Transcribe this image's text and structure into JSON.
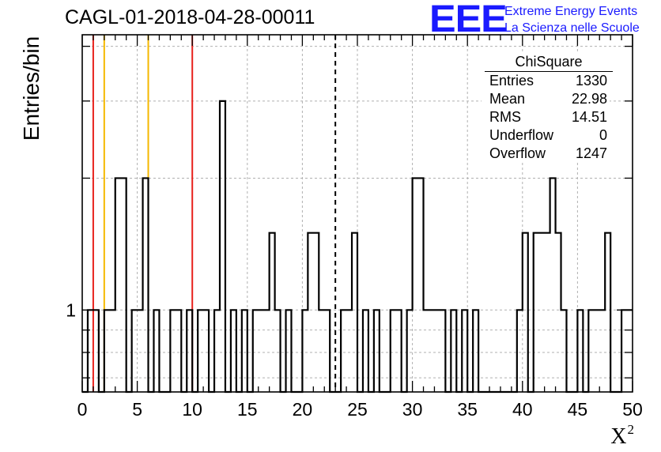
{
  "chart_data": {
    "type": "bar",
    "subtype": "step-histogram",
    "title": "CAGL-01-2018-04-28-00011",
    "xlabel": "X",
    "xlabel_superscript": "2",
    "ylabel": "Entries/bin",
    "xlim": [
      0,
      50
    ],
    "ylim": [
      0.65,
      4.25
    ],
    "yscale": "log",
    "grid": true,
    "bin_width": 0.5,
    "xticks": [
      "0",
      "5",
      "10",
      "15",
      "20",
      "25",
      "30",
      "35",
      "40",
      "45",
      "50"
    ],
    "yticks": [
      "1"
    ],
    "bins": [
      [
        0,
        0.5,
        0
      ],
      [
        0.5,
        1,
        1
      ],
      [
        1,
        1.5,
        1
      ],
      [
        1.5,
        2,
        0
      ],
      [
        2,
        2.5,
        1
      ],
      [
        2.5,
        3,
        1
      ],
      [
        3,
        3.5,
        2
      ],
      [
        3.5,
        4,
        2
      ],
      [
        4,
        4.5,
        0
      ],
      [
        4.5,
        5,
        1
      ],
      [
        5,
        5.5,
        1
      ],
      [
        5.5,
        6,
        2
      ],
      [
        6,
        6.5,
        0
      ],
      [
        6.5,
        7,
        1
      ],
      [
        7,
        7.5,
        0
      ],
      [
        7.5,
        8,
        0
      ],
      [
        8,
        8.5,
        1
      ],
      [
        8.5,
        9,
        1
      ],
      [
        9,
        9.5,
        0
      ],
      [
        9.5,
        10,
        1
      ],
      [
        10,
        10.5,
        0
      ],
      [
        10.5,
        11,
        1
      ],
      [
        11,
        11.5,
        1
      ],
      [
        11.5,
        12,
        0
      ],
      [
        12,
        12.5,
        1
      ],
      [
        12.5,
        13,
        3
      ],
      [
        13,
        13.5,
        0
      ],
      [
        13.5,
        14,
        1
      ],
      [
        14,
        14.5,
        0
      ],
      [
        14.5,
        15,
        1
      ],
      [
        15,
        15.5,
        0
      ],
      [
        15.5,
        16,
        1
      ],
      [
        16,
        16.5,
        1
      ],
      [
        16.5,
        17,
        1
      ],
      [
        17,
        17.5,
        1.5
      ],
      [
        17.5,
        18,
        1
      ],
      [
        18,
        18.5,
        0
      ],
      [
        18.5,
        19,
        1
      ],
      [
        19,
        19.5,
        0
      ],
      [
        19.5,
        20,
        0
      ],
      [
        20,
        20.5,
        1
      ],
      [
        20.5,
        21,
        1.5
      ],
      [
        21,
        21.5,
        1.5
      ],
      [
        21.5,
        22,
        1
      ],
      [
        22,
        22.5,
        1
      ],
      [
        22.5,
        23,
        0
      ],
      [
        23,
        23.5,
        0
      ],
      [
        23.5,
        24,
        1
      ],
      [
        24,
        24.5,
        1
      ],
      [
        24.5,
        25,
        1.5
      ],
      [
        25,
        25.5,
        0
      ],
      [
        25.5,
        26,
        1
      ],
      [
        26,
        26.5,
        0
      ],
      [
        26.5,
        27,
        1
      ],
      [
        27,
        27.5,
        0
      ],
      [
        27.5,
        28,
        0
      ],
      [
        28,
        28.5,
        1
      ],
      [
        28.5,
        29,
        1
      ],
      [
        29,
        29.5,
        0
      ],
      [
        29.5,
        30,
        1
      ],
      [
        30,
        30.5,
        2
      ],
      [
        30.5,
        31,
        2
      ],
      [
        31,
        31.5,
        1
      ],
      [
        31.5,
        32,
        1
      ],
      [
        32,
        32.5,
        1
      ],
      [
        32.5,
        33,
        1
      ],
      [
        33,
        33.5,
        0
      ],
      [
        33.5,
        34,
        1
      ],
      [
        34,
        34.5,
        0
      ],
      [
        34.5,
        35,
        1
      ],
      [
        35,
        35.5,
        0
      ],
      [
        35.5,
        36,
        1
      ],
      [
        36,
        36.5,
        0
      ],
      [
        36.5,
        37,
        0
      ],
      [
        37,
        37.5,
        0
      ],
      [
        37.5,
        38,
        0
      ],
      [
        38,
        38.5,
        0
      ],
      [
        38.5,
        39,
        0
      ],
      [
        39,
        39.5,
        0
      ],
      [
        39.5,
        40,
        1
      ],
      [
        40,
        40.5,
        1.5
      ],
      [
        40.5,
        41,
        0
      ],
      [
        41,
        41.5,
        1.5
      ],
      [
        41.5,
        42,
        1.5
      ],
      [
        42,
        42.5,
        1.5
      ],
      [
        42.5,
        43,
        2
      ],
      [
        43,
        43.5,
        1.5
      ],
      [
        43.5,
        44,
        1
      ],
      [
        44,
        44.5,
        0
      ],
      [
        44.5,
        45,
        0
      ],
      [
        45,
        45.5,
        1
      ],
      [
        45.5,
        46,
        0
      ],
      [
        46,
        46.5,
        1
      ],
      [
        46.5,
        47,
        1
      ],
      [
        47,
        47.5,
        1
      ],
      [
        47.5,
        48,
        1.5
      ],
      [
        48,
        48.5,
        0
      ],
      [
        48.5,
        49,
        0
      ],
      [
        49,
        49.5,
        1
      ],
      [
        49.5,
        50,
        1
      ]
    ],
    "vertical_lines": [
      {
        "x": 1.0,
        "color": "#e8221c",
        "style": "solid"
      },
      {
        "x": 10.0,
        "color": "#e8221c",
        "style": "solid"
      },
      {
        "x": 2.0,
        "color": "#f5b800",
        "style": "solid"
      },
      {
        "x": 6.0,
        "color": "#f5b800",
        "style": "solid"
      },
      {
        "x": 23.0,
        "color": "#000000",
        "style": "dashed"
      }
    ],
    "stats": {
      "title": "ChiSquare",
      "rows": [
        {
          "label": "Entries",
          "value": "1330"
        },
        {
          "label": "Mean",
          "value": "22.98"
        },
        {
          "label": "RMS",
          "value": "14.51"
        },
        {
          "label": "Underflow",
          "value": "0"
        },
        {
          "label": "Overflow",
          "value": "1247"
        }
      ]
    }
  },
  "logo": {
    "text": "EEE",
    "line1": "Extreme Energy Events",
    "line2": "La Scienza nelle Scuole",
    "color": "#1a1aff"
  }
}
